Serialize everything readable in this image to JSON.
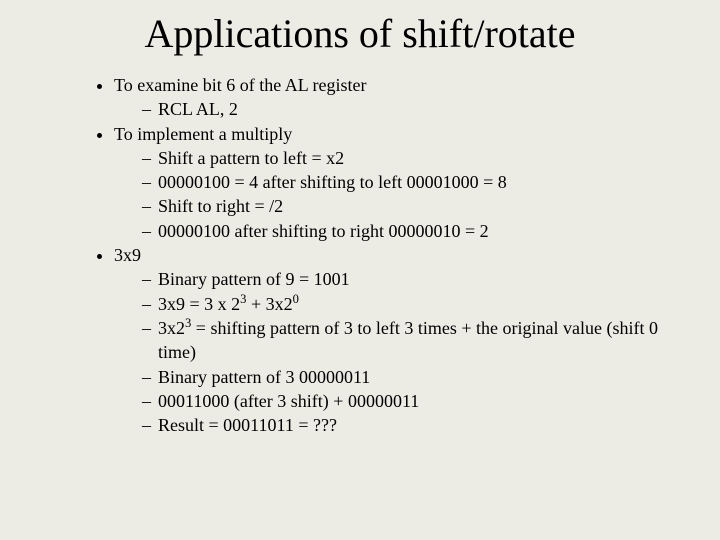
{
  "title": "Applications of shift/rotate",
  "b1": {
    "text": "To examine bit 6 of the AL register",
    "s1": "RCL AL, 2"
  },
  "b2": {
    "text": "To implement a multiply",
    "s1": "Shift a pattern to left = x2",
    "s2": "00000100 = 4 after shifting to left 00001000 = 8",
    "s3": "Shift to right = /2",
    "s4": "00000100 after shifting to right 00000010 = 2"
  },
  "b3": {
    "text": "3x9",
    "s1": "Binary pattern of 9 = 1001",
    "s2a": "3x9 = 3 x 2",
    "s2sup1": "3",
    "s2b": " + 3x2",
    "s2sup2": "0",
    "s3a": "3x2",
    "s3sup": "3",
    "s3b": " = shifting pattern of 3 to left 3 times + the original value (shift 0 time)",
    "s4": "Binary pattern of 3 00000011",
    "s5": "00011000 (after 3 shift) + 00000011",
    "s6": "Result = 00011011 = ???"
  }
}
